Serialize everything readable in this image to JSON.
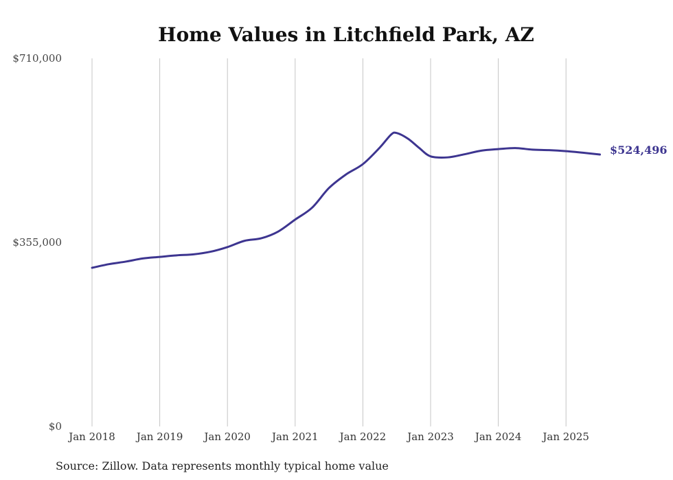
{
  "chart_data": {
    "type": "line",
    "title": "Home Values in Litchfield Park, AZ",
    "xlabel": "",
    "ylabel": "",
    "x_ticks": [
      "Jan 2018",
      "Jan 2019",
      "Jan 2020",
      "Jan 2021",
      "Jan 2022",
      "Jan 2023",
      "Jan 2024",
      "Jan 2025"
    ],
    "y_ticks": [
      "$0",
      "$355,000",
      "$710,000"
    ],
    "ylim": [
      0,
      710000
    ],
    "xlim": [
      "2018-01",
      "2025-07"
    ],
    "grid": "vertical",
    "legend": "none",
    "end_label": "$524,496",
    "series": [
      {
        "color": "#3d3590",
        "points": [
          {
            "x": "2018-01",
            "y": 306000
          },
          {
            "x": "2018-04",
            "y": 313000
          },
          {
            "x": "2018-07",
            "y": 318000
          },
          {
            "x": "2018-10",
            "y": 324000
          },
          {
            "x": "2019-01",
            "y": 327000
          },
          {
            "x": "2019-04",
            "y": 330000
          },
          {
            "x": "2019-07",
            "y": 332000
          },
          {
            "x": "2019-10",
            "y": 337000
          },
          {
            "x": "2020-01",
            "y": 346000
          },
          {
            "x": "2020-04",
            "y": 358000
          },
          {
            "x": "2020-07",
            "y": 363000
          },
          {
            "x": "2020-10",
            "y": 376000
          },
          {
            "x": "2021-01",
            "y": 399000
          },
          {
            "x": "2021-04",
            "y": 422000
          },
          {
            "x": "2021-07",
            "y": 460000
          },
          {
            "x": "2021-10",
            "y": 486000
          },
          {
            "x": "2022-01",
            "y": 506000
          },
          {
            "x": "2022-04",
            "y": 538000
          },
          {
            "x": "2022-06",
            "y": 563000
          },
          {
            "x": "2022-07",
            "y": 566000
          },
          {
            "x": "2022-09",
            "y": 555000
          },
          {
            "x": "2022-11",
            "y": 537000
          },
          {
            "x": "2023-01",
            "y": 521000
          },
          {
            "x": "2023-04",
            "y": 519000
          },
          {
            "x": "2023-07",
            "y": 525000
          },
          {
            "x": "2023-10",
            "y": 532000
          },
          {
            "x": "2024-01",
            "y": 535000
          },
          {
            "x": "2024-04",
            "y": 537000
          },
          {
            "x": "2024-07",
            "y": 534000
          },
          {
            "x": "2024-10",
            "y": 533000
          },
          {
            "x": "2025-01",
            "y": 531000
          },
          {
            "x": "2025-04",
            "y": 528000
          },
          {
            "x": "2025-07",
            "y": 524496
          }
        ]
      }
    ]
  },
  "footer": {
    "source": "Source: Zillow. Data represents monthly typical home value"
  }
}
